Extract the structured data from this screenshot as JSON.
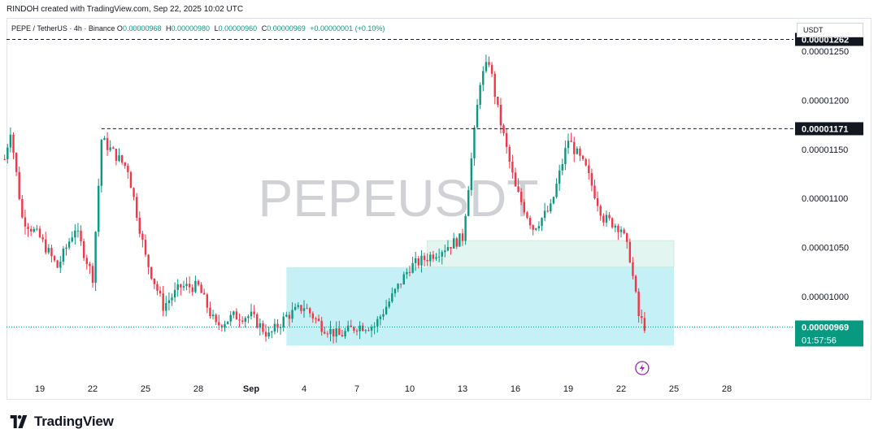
{
  "header": {
    "credit": "RINDOH created with TradingView.com, Sep 22, 2025 10:02 UTC"
  },
  "legend": {
    "symbol": "PEPE / TetherUS · 4h · Binance",
    "open_label": "O",
    "open": "0.00000968",
    "high_label": "H",
    "high": "0.00000980",
    "low_label": "L",
    "low": "0.00000960",
    "close_label": "C",
    "close": "0.00000969",
    "change": "+0.00000001 (+0.10%)"
  },
  "currency": "USDT",
  "watermark": "PEPEUSDT",
  "brand": {
    "name": "TradingView",
    "logo_icon": "tradingview-logo-icon"
  },
  "colors": {
    "up": "#089981",
    "down": "#f23645",
    "zone": "#b2ebf2",
    "zone_light": "#e0f4ee"
  },
  "chart_data": {
    "type": "candlestick",
    "title": "",
    "y_axis": {
      "ticks": [
        "0.00001250",
        "0.00001200",
        "0.00001150",
        "0.00001100",
        "0.00001050",
        "0.00001000"
      ],
      "tick_values": [
        1.25e-05,
        1.2e-05,
        1.15e-05,
        1.1e-05,
        1.05e-05,
        1e-05
      ],
      "range": [
        9.3e-06,
        1.27e-05
      ]
    },
    "x_axis": {
      "ticks": [
        "19",
        "22",
        "25",
        "28",
        "Sep",
        "4",
        "7",
        "10",
        "13",
        "16",
        "19",
        "22",
        "25",
        "28"
      ],
      "range_days": [
        "Aug 17",
        "Sep 29"
      ]
    },
    "price_path": [
      [
        "Aug 17 00:00",
        1.14e-05
      ],
      [
        "Aug 17 08:00",
        1.17e-05
      ],
      [
        "Aug 18 00:00",
        1.08e-05
      ],
      [
        "Aug 19 00:00",
        1.06e-05
      ],
      [
        "Aug 20 00:00",
        1.03e-05
      ],
      [
        "Aug 21 00:00",
        1.07e-05
      ],
      [
        "Aug 22 00:00",
        1.02e-05
      ],
      [
        "Aug 22 12:00",
        1.16e-05
      ],
      [
        "Aug 23 00:00",
        1.15e-05
      ],
      [
        "Aug 24 00:00",
        1.13e-05
      ],
      [
        "Aug 25 00:00",
        1.04e-05
      ],
      [
        "Aug 26 00:00",
        9.9e-06
      ],
      [
        "Aug 27 00:00",
        1.01e-05
      ],
      [
        "Aug 28 00:00",
        1.01e-05
      ],
      [
        "Aug 29 00:00",
        9.7e-06
      ],
      [
        "Aug 30 00:00",
        9.8e-06
      ],
      [
        "Aug 31 00:00",
        9.8e-06
      ],
      [
        "Sep 1 00:00",
        9.6e-06
      ],
      [
        "Sep 2 00:00",
        9.8e-06
      ],
      [
        "Sep 3 00:00",
        9.9e-06
      ],
      [
        "Sep 4 00:00",
        9.7e-06
      ],
      [
        "Sep 5 00:00",
        9.6e-06
      ],
      [
        "Sep 6 00:00",
        9.7e-06
      ],
      [
        "Sep 7 00:00",
        9.7e-06
      ],
      [
        "Sep 8 00:00",
        1e-05
      ],
      [
        "Sep 9 00:00",
        1.03e-05
      ],
      [
        "Sep 10 00:00",
        1.04e-05
      ],
      [
        "Sep 11 00:00",
        1.05e-05
      ],
      [
        "Sep 12 00:00",
        1.06e-05
      ],
      [
        "Sep 13 00:00",
        1.22e-05
      ],
      [
        "Sep 13 12:00",
        1.24e-05
      ],
      [
        "Sep 14 00:00",
        1.19e-05
      ],
      [
        "Sep 15 00:00",
        1.11e-05
      ],
      [
        "Sep 16 00:00",
        1.07e-05
      ],
      [
        "Sep 17 00:00",
        1.09e-05
      ],
      [
        "Sep 18 00:00",
        1.16e-05
      ],
      [
        "Sep 19 00:00",
        1.13e-05
      ],
      [
        "Sep 20 00:00",
        1.08e-05
      ],
      [
        "Sep 21 00:00",
        1.07e-05
      ],
      [
        "Sep 21 12:00",
        1.04e-05
      ],
      [
        "Sep 22 00:00",
        9.8e-06
      ],
      [
        "Sep 22 08:00",
        9.7e-06
      ]
    ],
    "levels": [
      {
        "price": 1.262e-05,
        "label": "0.00001262",
        "style": "dashed"
      },
      {
        "price": 1.171e-05,
        "label": "0.00001171",
        "style": "dashed"
      }
    ],
    "current_price": {
      "price": 9.69e-06,
      "label": "0.00000969",
      "countdown": "01:57:56"
    },
    "zones": [
      {
        "from": "Sep 10",
        "to": "Sep 24",
        "low": 1.03e-05,
        "high": 1.057e-05,
        "color": "#e0f4ee"
      },
      {
        "from": "Sep 2",
        "to": "Sep 24",
        "low": 9.5e-06,
        "high": 1.03e-05,
        "color": "#b2ebf2"
      }
    ]
  }
}
